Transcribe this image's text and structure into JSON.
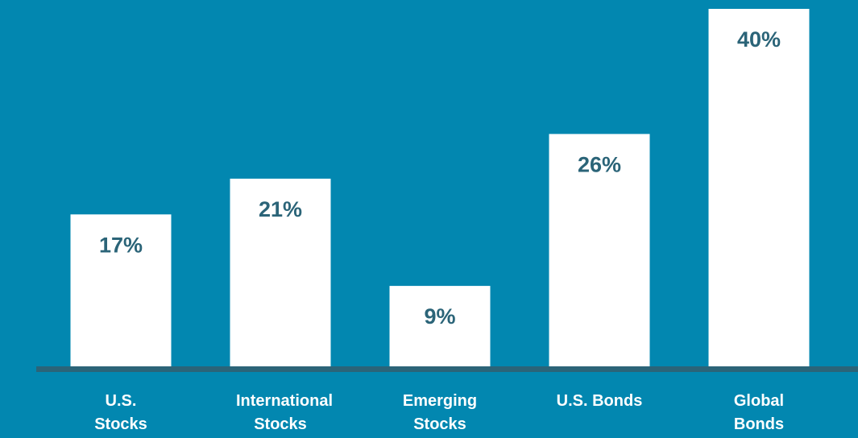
{
  "chart_data": {
    "type": "bar",
    "categories": [
      "U.S. Stocks",
      "International Stocks",
      "Emerging Stocks",
      "U.S. Bonds",
      "Global Bonds"
    ],
    "values": [
      17,
      21,
      9,
      26,
      40
    ],
    "value_labels": [
      "17%",
      "21%",
      "9%",
      "26%",
      "40%"
    ],
    "color": "#ffffff",
    "background": "#0287b0",
    "label_color": "#2b6478"
  }
}
